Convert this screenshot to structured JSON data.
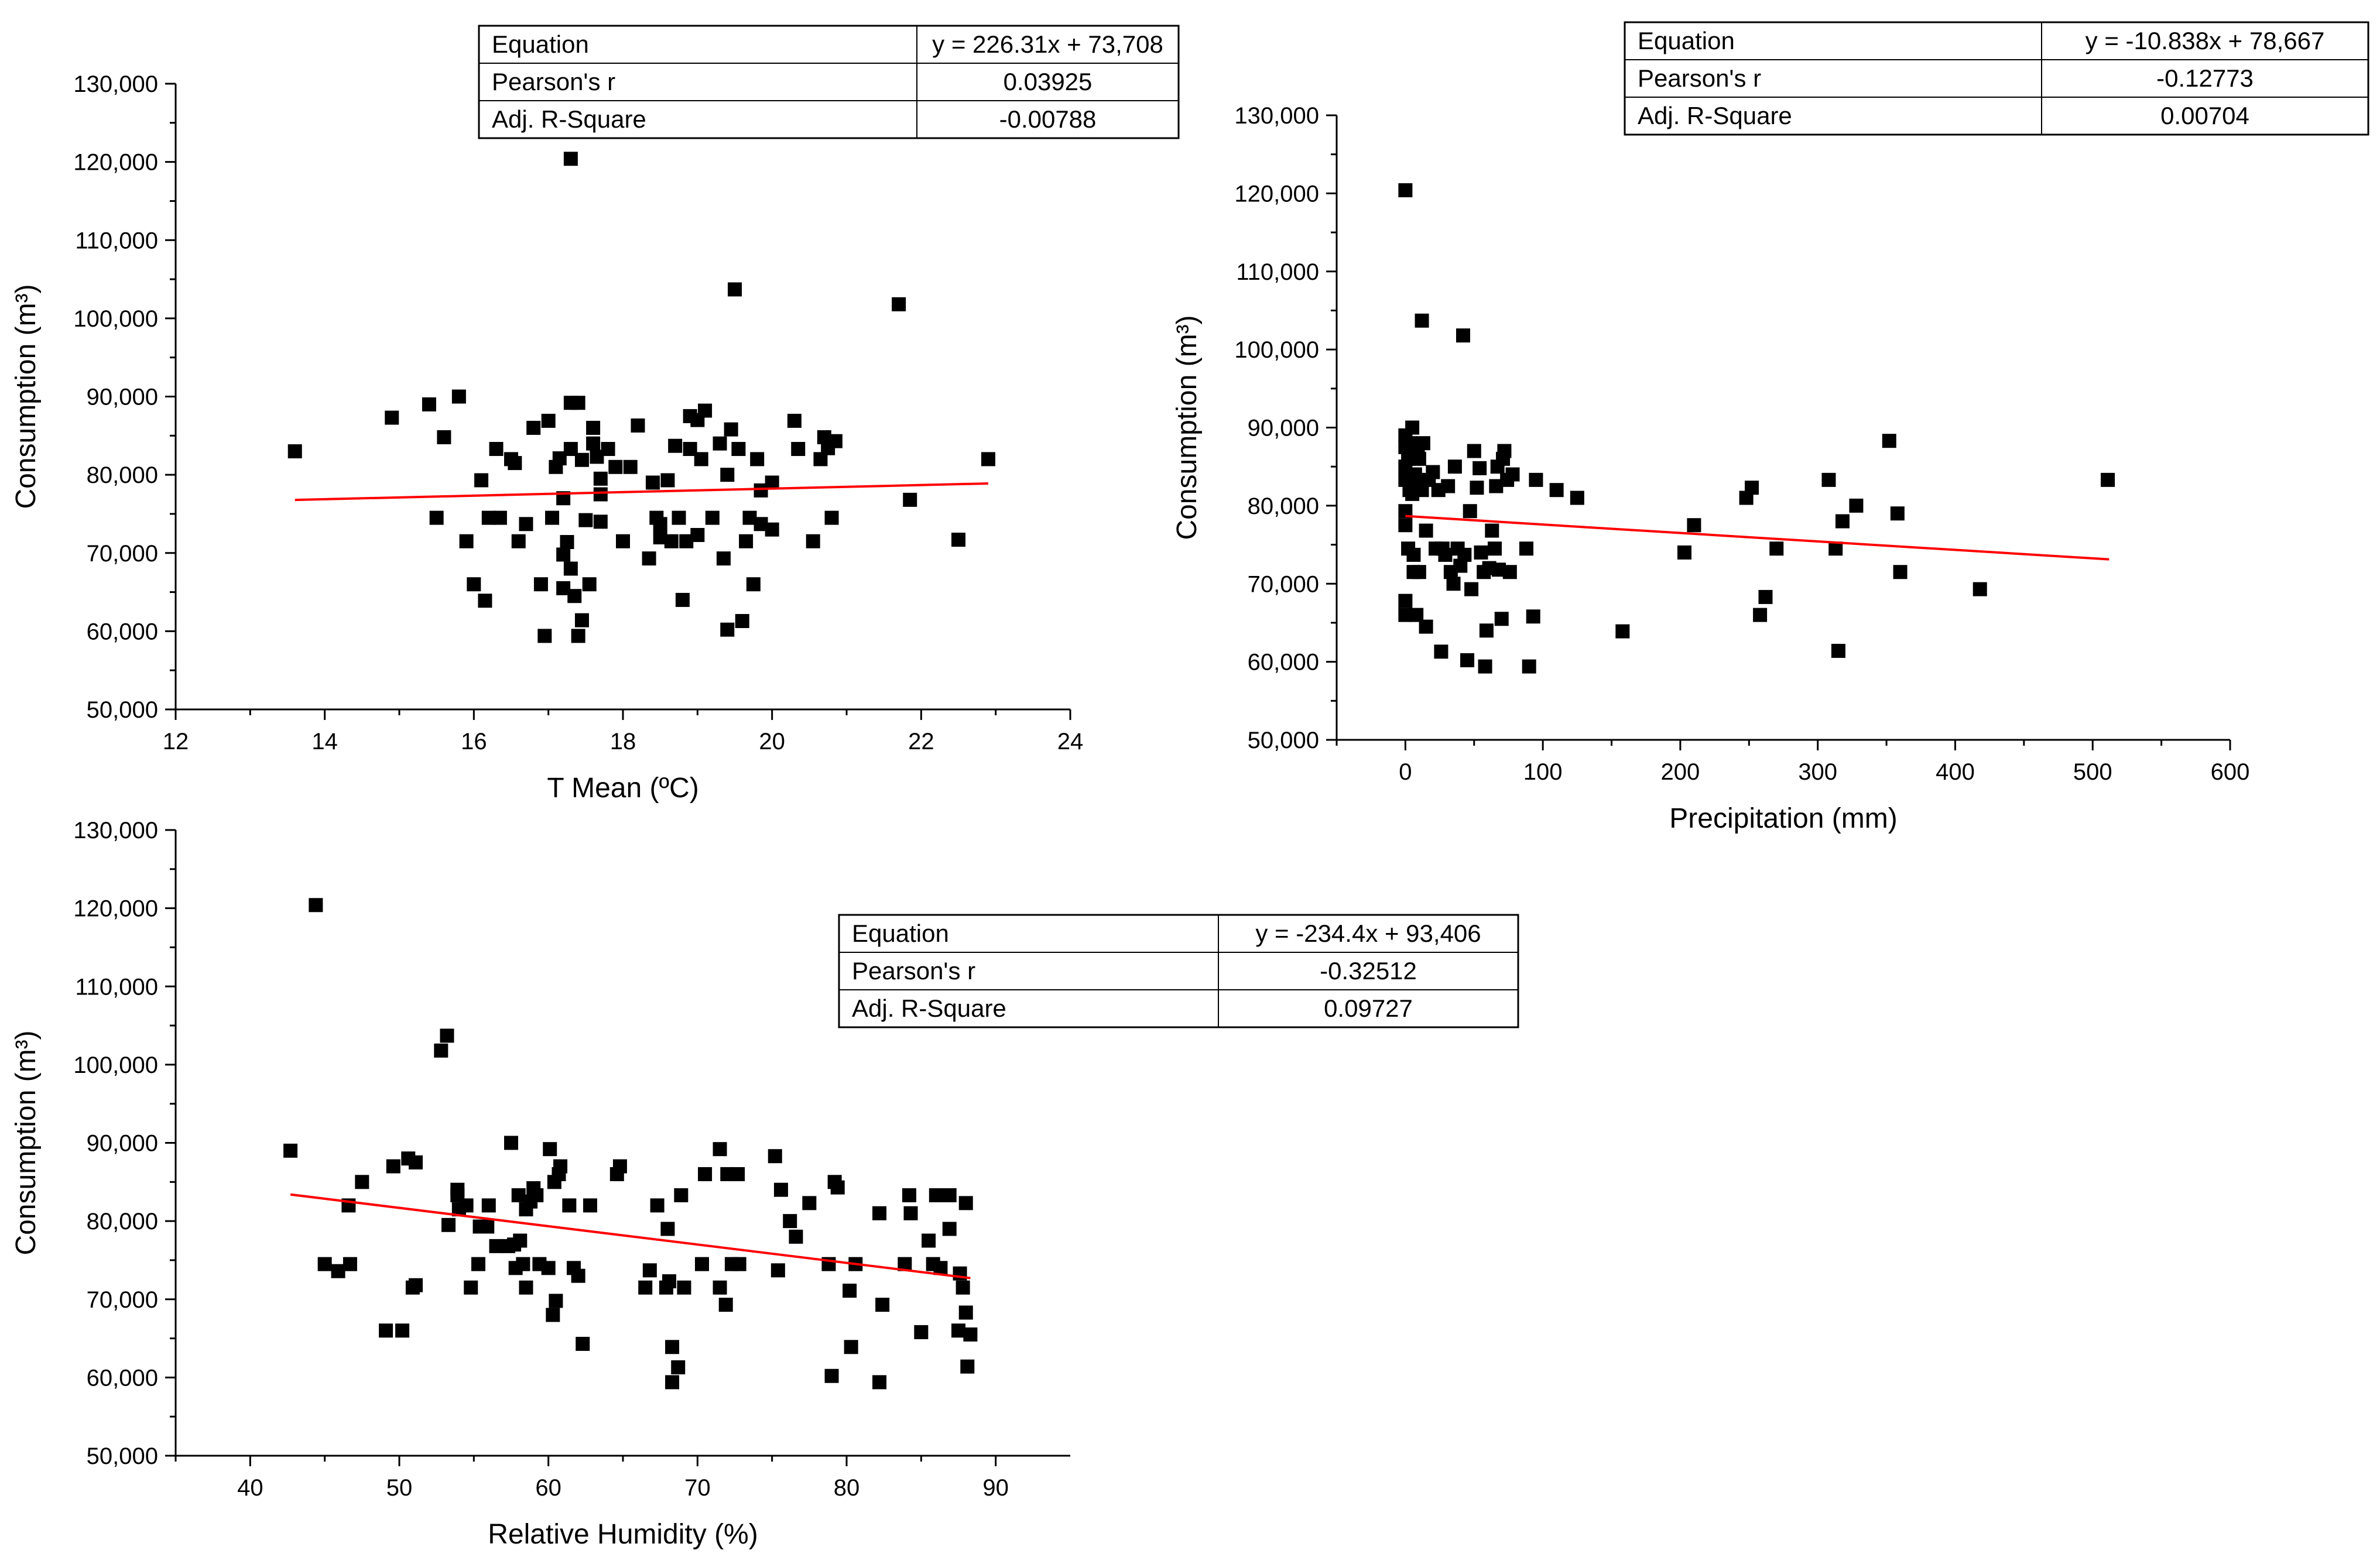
{
  "chart_data": [
    {
      "id": "tmean",
      "type": "scatter",
      "xlabel": "T Mean (ºC)",
      "ylabel": "Consumption (m³)",
      "xlim": [
        12,
        24
      ],
      "ylim": [
        50000,
        130000
      ],
      "xticks": [
        12,
        14,
        16,
        18,
        20,
        22,
        24
      ],
      "xtick_labels": [
        "12",
        "14",
        "16",
        "18",
        "20",
        "22",
        "24"
      ],
      "yticks": [
        50000,
        60000,
        70000,
        80000,
        90000,
        100000,
        110000,
        120000,
        130000
      ],
      "ytick_labels": [
        "50,000",
        "60,000",
        "70,000",
        "80,000",
        "90,000",
        "100,000",
        "110,000",
        "120,000",
        "130,000"
      ],
      "fit": {
        "slope": 226.31,
        "intercept": 73708,
        "x_range": [
          13.6,
          22.9
        ],
        "color": "#ff0000"
      },
      "stats": {
        "rows": [
          {
            "label": "Equation",
            "value": "y = 226.31x + 73,708"
          },
          {
            "label": "Pearson's r",
            "value": "0.03925"
          },
          {
            "label": "Adj. R-Square",
            "value": "-0.00788"
          }
        ]
      },
      "points": [
        [
          13.6,
          83000
        ],
        [
          14.9,
          87300
        ],
        [
          15.4,
          89000
        ],
        [
          15.5,
          74500
        ],
        [
          15.6,
          84800
        ],
        [
          15.8,
          90000
        ],
        [
          15.9,
          71500
        ],
        [
          16.0,
          66000
        ],
        [
          16.1,
          79300
        ],
        [
          16.15,
          63900
        ],
        [
          16.2,
          74500
        ],
        [
          16.3,
          83300
        ],
        [
          16.35,
          74500
        ],
        [
          16.5,
          82000
        ],
        [
          16.55,
          81500
        ],
        [
          16.6,
          71500
        ],
        [
          16.7,
          73700
        ],
        [
          16.8,
          86000
        ],
        [
          16.9,
          66000
        ],
        [
          16.95,
          59400
        ],
        [
          17.0,
          86900
        ],
        [
          17.05,
          74500
        ],
        [
          17.1,
          81000
        ],
        [
          17.15,
          82100
        ],
        [
          17.2,
          77000
        ],
        [
          17.2,
          69800
        ],
        [
          17.2,
          65500
        ],
        [
          17.25,
          71400
        ],
        [
          17.3,
          120400
        ],
        [
          17.3,
          89200
        ],
        [
          17.3,
          83300
        ],
        [
          17.3,
          68000
        ],
        [
          17.35,
          64500
        ],
        [
          17.4,
          89200
        ],
        [
          17.4,
          59400
        ],
        [
          17.45,
          81900
        ],
        [
          17.45,
          61400
        ],
        [
          17.5,
          74200
        ],
        [
          17.55,
          66000
        ],
        [
          17.6,
          86000
        ],
        [
          17.6,
          84000
        ],
        [
          17.65,
          82300
        ],
        [
          17.7,
          79500
        ],
        [
          17.7,
          77500
        ],
        [
          17.7,
          74000
        ],
        [
          17.8,
          83300
        ],
        [
          17.9,
          81000
        ],
        [
          18.0,
          71500
        ],
        [
          18.1,
          81000
        ],
        [
          18.2,
          86300
        ],
        [
          18.35,
          69300
        ],
        [
          18.4,
          79000
        ],
        [
          18.45,
          74500
        ],
        [
          18.5,
          72000
        ],
        [
          18.5,
          73700
        ],
        [
          18.6,
          79300
        ],
        [
          18.65,
          71500
        ],
        [
          18.7,
          83700
        ],
        [
          18.75,
          74500
        ],
        [
          18.8,
          64000
        ],
        [
          18.85,
          71500
        ],
        [
          18.9,
          83300
        ],
        [
          18.9,
          87500
        ],
        [
          19.0,
          72300
        ],
        [
          19.0,
          87000
        ],
        [
          19.05,
          82000
        ],
        [
          19.1,
          88200
        ],
        [
          19.2,
          74500
        ],
        [
          19.3,
          84000
        ],
        [
          19.35,
          69300
        ],
        [
          19.4,
          60200
        ],
        [
          19.4,
          80000
        ],
        [
          19.45,
          85800
        ],
        [
          19.5,
          103700
        ],
        [
          19.55,
          83300
        ],
        [
          19.6,
          61300
        ],
        [
          19.65,
          71500
        ],
        [
          19.7,
          74500
        ],
        [
          19.75,
          66000
        ],
        [
          19.8,
          82000
        ],
        [
          19.85,
          73700
        ],
        [
          19.85,
          78000
        ],
        [
          20.0,
          73000
        ],
        [
          20.0,
          79000
        ],
        [
          20.3,
          86900
        ],
        [
          20.35,
          83300
        ],
        [
          20.55,
          71500
        ],
        [
          20.65,
          82000
        ],
        [
          20.7,
          84800
        ],
        [
          20.75,
          83400
        ],
        [
          20.8,
          74500
        ],
        [
          20.85,
          84300
        ],
        [
          21.7,
          101800
        ],
        [
          21.85,
          76800
        ],
        [
          22.5,
          71700
        ],
        [
          22.9,
          82000
        ]
      ]
    },
    {
      "id": "precipitation",
      "type": "scatter",
      "xlabel": "Precipitation (mm)",
      "ylabel": "Consumption (m³)",
      "xlim": [
        -50,
        600
      ],
      "ylim": [
        50000,
        130000
      ],
      "xticks": [
        0,
        100,
        200,
        300,
        400,
        500,
        600
      ],
      "xtick_labels": [
        "0",
        "100",
        "200",
        "300",
        "400",
        "500",
        "600"
      ],
      "yticks": [
        50000,
        60000,
        70000,
        80000,
        90000,
        100000,
        110000,
        120000,
        130000
      ],
      "ytick_labels": [
        "50,000",
        "60,000",
        "70,000",
        "80,000",
        "90,000",
        "100,000",
        "110,000",
        "120,000",
        "130,000"
      ],
      "fit": {
        "slope": -10.838,
        "intercept": 78667,
        "x_range": [
          0,
          512
        ],
        "color": "#ff0000"
      },
      "stats": {
        "rows": [
          {
            "label": "Equation",
            "value": "y = -10.838x + 78,667"
          },
          {
            "label": "Pearson's r",
            "value": "-0.12773"
          },
          {
            "label": "Adj. R-Square",
            "value": "0.00704"
          }
        ]
      },
      "points": [
        [
          0,
          120400
        ],
        [
          0,
          89000
        ],
        [
          0,
          87500
        ],
        [
          0,
          85000
        ],
        [
          0,
          83300
        ],
        [
          0,
          79300
        ],
        [
          0,
          77500
        ],
        [
          0,
          67800
        ],
        [
          0,
          66000
        ],
        [
          2,
          74500
        ],
        [
          2,
          86000
        ],
        [
          3,
          82000
        ],
        [
          4,
          88000
        ],
        [
          5,
          81500
        ],
        [
          5,
          90000
        ],
        [
          6,
          73700
        ],
        [
          6,
          71500
        ],
        [
          7,
          84000
        ],
        [
          8,
          83300
        ],
        [
          8,
          66000
        ],
        [
          9,
          87500
        ],
        [
          10,
          86000
        ],
        [
          10,
          71500
        ],
        [
          12,
          103700
        ],
        [
          12,
          82000
        ],
        [
          13,
          88000
        ],
        [
          15,
          76800
        ],
        [
          15,
          64500
        ],
        [
          17,
          83300
        ],
        [
          20,
          84300
        ],
        [
          22,
          74500
        ],
        [
          24,
          82000
        ],
        [
          26,
          61300
        ],
        [
          27,
          74500
        ],
        [
          29,
          73700
        ],
        [
          31,
          82500
        ],
        [
          33,
          71500
        ],
        [
          35,
          70000
        ],
        [
          36,
          85000
        ],
        [
          38,
          74500
        ],
        [
          40,
          72300
        ],
        [
          42,
          101800
        ],
        [
          43,
          73700
        ],
        [
          45,
          60200
        ],
        [
          47,
          79300
        ],
        [
          48,
          69300
        ],
        [
          50,
          87000
        ],
        [
          52,
          82300
        ],
        [
          54,
          84800
        ],
        [
          55,
          74000
        ],
        [
          57,
          71500
        ],
        [
          58,
          59400
        ],
        [
          59,
          64000
        ],
        [
          61,
          72000
        ],
        [
          63,
          76800
        ],
        [
          65,
          74500
        ],
        [
          66,
          82500
        ],
        [
          67,
          85000
        ],
        [
          68,
          71800
        ],
        [
          70,
          65500
        ],
        [
          71,
          86000
        ],
        [
          72,
          87000
        ],
        [
          74,
          83300
        ],
        [
          76,
          71500
        ],
        [
          78,
          84000
        ],
        [
          88,
          74500
        ],
        [
          90,
          59400
        ],
        [
          93,
          65800
        ],
        [
          95,
          83300
        ],
        [
          110,
          82000
        ],
        [
          125,
          81000
        ],
        [
          158,
          63900
        ],
        [
          203,
          74000
        ],
        [
          210,
          77500
        ],
        [
          248,
          81000
        ],
        [
          252,
          82300
        ],
        [
          258,
          66000
        ],
        [
          262,
          68300
        ],
        [
          270,
          74500
        ],
        [
          308,
          83300
        ],
        [
          313,
          74500
        ],
        [
          315,
          61400
        ],
        [
          318,
          78000
        ],
        [
          328,
          80000
        ],
        [
          352,
          88300
        ],
        [
          358,
          79000
        ],
        [
          360,
          71500
        ],
        [
          418,
          69300
        ],
        [
          511,
          83300
        ]
      ]
    },
    {
      "id": "humidity",
      "type": "scatter",
      "xlabel": "Relative Humidity (%)",
      "ylabel": "Consumption (m³)",
      "xlim": [
        35,
        95
      ],
      "ylim": [
        50000,
        130000
      ],
      "xticks": [
        40,
        50,
        60,
        70,
        80,
        90
      ],
      "xtick_labels": [
        "40",
        "50",
        "60",
        "70",
        "80",
        "90"
      ],
      "yticks": [
        50000,
        60000,
        70000,
        80000,
        90000,
        100000,
        110000,
        120000,
        130000
      ],
      "ytick_labels": [
        "50,000",
        "60,000",
        "70,000",
        "80,000",
        "90,000",
        "100,000",
        "110,000",
        "120,000",
        "130,000"
      ],
      "fit": {
        "slope": -234.4,
        "intercept": 93406,
        "x_range": [
          42.7,
          88.3
        ],
        "color": "#ff0000"
      },
      "stats": {
        "rows": [
          {
            "label": "Equation",
            "value": "y = -234.4x + 93,406"
          },
          {
            "label": "Pearson's r",
            "value": "-0.32512"
          },
          {
            "label": "Adj. R-Square",
            "value": "0.09727"
          }
        ]
      },
      "points": [
        [
          42.7,
          89000
        ],
        [
          44.4,
          120400
        ],
        [
          45.0,
          74500
        ],
        [
          45.9,
          73600
        ],
        [
          46.6,
          82000
        ],
        [
          46.7,
          74500
        ],
        [
          47.5,
          85000
        ],
        [
          49.1,
          66000
        ],
        [
          49.6,
          87000
        ],
        [
          50.2,
          66000
        ],
        [
          50.6,
          88000
        ],
        [
          50.9,
          71500
        ],
        [
          51.1,
          71800
        ],
        [
          51.1,
          87500
        ],
        [
          52.8,
          101800
        ],
        [
          53.2,
          103700
        ],
        [
          53.3,
          79500
        ],
        [
          53.9,
          84000
        ],
        [
          53.9,
          83300
        ],
        [
          54.0,
          81500
        ],
        [
          54.5,
          82000
        ],
        [
          54.8,
          71500
        ],
        [
          55.3,
          74500
        ],
        [
          55.4,
          79300
        ],
        [
          55.9,
          79300
        ],
        [
          56.0,
          82000
        ],
        [
          56.5,
          76800
        ],
        [
          57.3,
          76800
        ],
        [
          57.5,
          90000
        ],
        [
          57.7,
          77000
        ],
        [
          57.8,
          74000
        ],
        [
          58.0,
          83300
        ],
        [
          58.1,
          77500
        ],
        [
          58.3,
          74500
        ],
        [
          58.5,
          71500
        ],
        [
          58.5,
          81500
        ],
        [
          58.8,
          82500
        ],
        [
          59.0,
          84200
        ],
        [
          59.2,
          83300
        ],
        [
          59.4,
          74500
        ],
        [
          60.0,
          74000
        ],
        [
          60.1,
          89200
        ],
        [
          60.3,
          68000
        ],
        [
          60.4,
          85000
        ],
        [
          60.5,
          69800
        ],
        [
          60.7,
          86000
        ],
        [
          60.8,
          87000
        ],
        [
          61.4,
          82000
        ],
        [
          61.7,
          74000
        ],
        [
          62.0,
          73000
        ],
        [
          62.3,
          64300
        ],
        [
          62.8,
          82000
        ],
        [
          64.6,
          86000
        ],
        [
          64.8,
          87000
        ],
        [
          66.5,
          71500
        ],
        [
          66.8,
          73700
        ],
        [
          67.3,
          82000
        ],
        [
          67.9,
          71500
        ],
        [
          68.0,
          79000
        ],
        [
          68.1,
          72300
        ],
        [
          68.3,
          63900
        ],
        [
          68.3,
          59400
        ],
        [
          68.7,
          61300
        ],
        [
          68.9,
          83300
        ],
        [
          69.1,
          71500
        ],
        [
          70.3,
          74500
        ],
        [
          70.5,
          86000
        ],
        [
          71.5,
          89200
        ],
        [
          71.5,
          71500
        ],
        [
          71.9,
          69300
        ],
        [
          72.0,
          86000
        ],
        [
          72.3,
          74500
        ],
        [
          72.7,
          86000
        ],
        [
          72.8,
          74500
        ],
        [
          75.2,
          88300
        ],
        [
          75.4,
          73700
        ],
        [
          75.6,
          84000
        ],
        [
          76.2,
          80000
        ],
        [
          76.6,
          78000
        ],
        [
          77.5,
          82300
        ],
        [
          78.8,
          74500
        ],
        [
          79.0,
          60200
        ],
        [
          79.2,
          85000
        ],
        [
          79.4,
          84300
        ],
        [
          80.2,
          71100
        ],
        [
          80.3,
          63900
        ],
        [
          80.6,
          74500
        ],
        [
          82.2,
          81000
        ],
        [
          82.2,
          59400
        ],
        [
          82.4,
          69300
        ],
        [
          83.9,
          74500
        ],
        [
          84.2,
          83300
        ],
        [
          84.3,
          81000
        ],
        [
          85.0,
          65800
        ],
        [
          85.5,
          77500
        ],
        [
          85.8,
          74500
        ],
        [
          86.0,
          83300
        ],
        [
          86.3,
          74000
        ],
        [
          86.9,
          83300
        ],
        [
          86.9,
          79000
        ],
        [
          87.5,
          66000
        ],
        [
          87.6,
          73300
        ],
        [
          87.8,
          71500
        ],
        [
          88.0,
          82300
        ],
        [
          88.0,
          68300
        ],
        [
          88.1,
          61400
        ],
        [
          88.3,
          65500
        ]
      ]
    }
  ]
}
